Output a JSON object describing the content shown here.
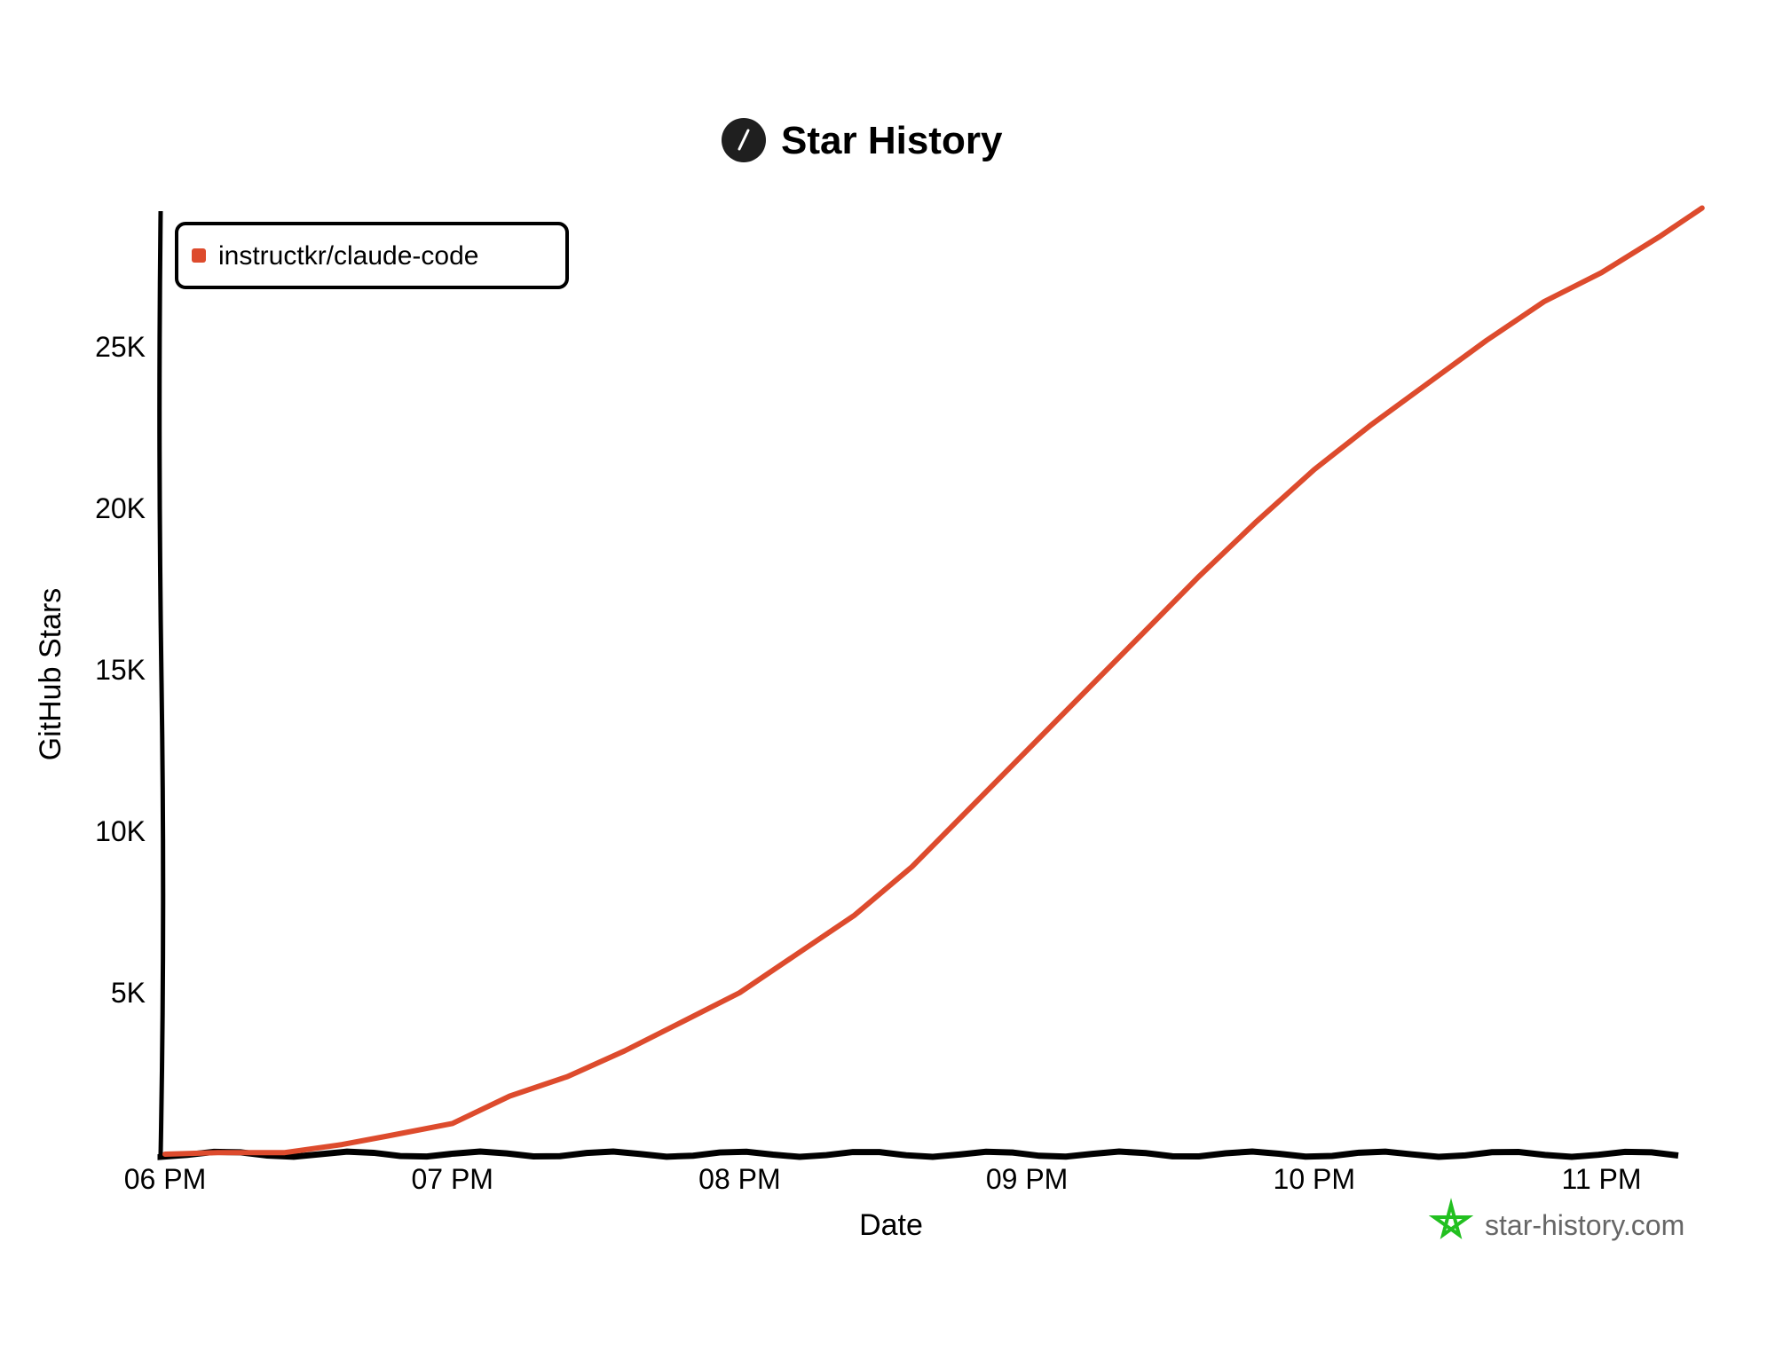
{
  "chart_data": {
    "type": "line",
    "title": "Star History",
    "xlabel": "Date",
    "ylabel": "GitHub Stars",
    "x_tick_labels": [
      "06 PM",
      "07 PM",
      "08 PM",
      "09 PM",
      "10 PM",
      "11 PM"
    ],
    "x_ticks": [
      "18:00",
      "19:00",
      "20:00",
      "21:00",
      "22:00",
      "23:00"
    ],
    "y_tick_labels": [
      "5K",
      "10K",
      "15K",
      "20K",
      "25K"
    ],
    "y_ticks": [
      5000,
      10000,
      15000,
      20000,
      25000
    ],
    "xlim": [
      "18:00",
      "23:21"
    ],
    "ylim": [
      0,
      29300
    ],
    "grid": false,
    "legend_position": "top-left",
    "series": [
      {
        "name": "instructkr/claude-code",
        "color": "#dd4b2d",
        "x": [
          "18:00",
          "18:11",
          "18:25",
          "18:37",
          "18:46",
          "19:00",
          "19:12",
          "19:24",
          "19:36",
          "19:48",
          "20:00",
          "20:12",
          "20:24",
          "20:36",
          "20:48",
          "21:00",
          "21:12",
          "21:24",
          "21:36",
          "21:48",
          "22:00",
          "22:12",
          "22:24",
          "22:36",
          "22:48",
          "23:00",
          "23:12",
          "23:21"
        ],
        "y": [
          0,
          50,
          50,
          300,
          550,
          950,
          1800,
          2400,
          3200,
          4100,
          5000,
          6200,
          7400,
          8900,
          10700,
          12500,
          14300,
          16100,
          17900,
          19600,
          21200,
          22600,
          23900,
          25200,
          26400,
          27300,
          28400,
          29300
        ]
      }
    ]
  },
  "watermark": {
    "text": "star-history.com",
    "color": "#22c020"
  }
}
